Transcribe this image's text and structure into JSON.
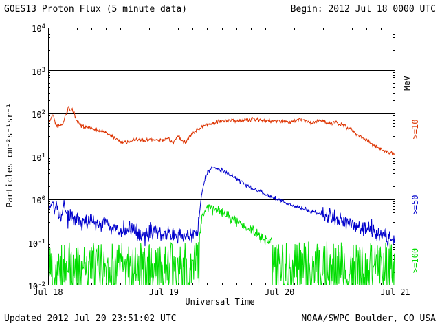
{
  "header": {
    "begin_label": "Begin: 2012 Jul 18 0000 UTC"
  },
  "footer": {
    "updated": "Updated 2012 Jul 20 23:51:02 UTC",
    "source": "NOAA/SWPC Boulder, CO USA"
  },
  "chart_data": {
    "type": "line",
    "title": "GOES13 Proton Flux (5 minute data)",
    "xlabel": "Universal Time",
    "ylabel": "Particles cm⁻²s⁻¹sr⁻¹",
    "x_unit": "hours since 2012 Jul 18 0000 UTC",
    "xlim": [
      0,
      72
    ],
    "ylim": [
      0.01,
      10000
    ],
    "yscale": "log",
    "grid": "decade horizontal lines, dashed alert line at 10, dotted vertical day boundaries",
    "x_ticks": [
      {
        "hour": 0,
        "label": "Jul 18"
      },
      {
        "hour": 24,
        "label": "Jul 19"
      },
      {
        "hour": 48,
        "label": "Jul 20"
      },
      {
        "hour": 72,
        "label": "Jul 21"
      }
    ],
    "minor_tick_hours": 3,
    "gridlines": [
      {
        "value": 1000,
        "style": "solid"
      },
      {
        "value": 100,
        "style": "solid"
      },
      {
        "value": 10,
        "style": "dashed"
      },
      {
        "value": 1,
        "style": "solid"
      },
      {
        "value": 0.1,
        "style": "solid"
      }
    ],
    "day_lines": [
      24,
      48
    ],
    "legend": {
      "axis_label": "MeV",
      "position": "right-vertical",
      "entries": [
        {
          "label": ">=10",
          "color": "#dd3300"
        },
        {
          "label": ">=50",
          "color": "#0000cc"
        },
        {
          "label": ">=100",
          "color": "#00dd00"
        }
      ]
    },
    "series": [
      {
        "name": ">=10 MeV",
        "color": "#dd3300",
        "noise_sigma": 0.022,
        "points": [
          [
            0,
            60
          ],
          [
            0.5,
            75
          ],
          [
            1,
            95
          ],
          [
            1.5,
            60
          ],
          [
            2,
            48
          ],
          [
            2.5,
            55
          ],
          [
            3,
            52
          ],
          [
            3.7,
            95
          ],
          [
            4.2,
            130
          ],
          [
            4.6,
            115
          ],
          [
            5,
            118
          ],
          [
            5.5,
            95
          ],
          [
            6,
            65
          ],
          [
            7,
            52
          ],
          [
            8,
            48
          ],
          [
            9,
            45
          ],
          [
            10,
            42
          ],
          [
            11,
            38
          ],
          [
            12,
            36
          ],
          [
            13,
            30
          ],
          [
            14,
            26
          ],
          [
            15,
            22
          ],
          [
            16,
            21
          ],
          [
            17,
            23
          ],
          [
            18,
            25
          ],
          [
            19,
            24
          ],
          [
            20,
            23
          ],
          [
            21,
            24
          ],
          [
            22,
            25
          ],
          [
            23,
            24
          ],
          [
            24,
            25
          ],
          [
            25,
            27
          ],
          [
            25.5,
            22
          ],
          [
            26,
            21
          ],
          [
            26.5,
            26
          ],
          [
            27,
            30
          ],
          [
            27.5,
            26
          ],
          [
            28,
            22
          ],
          [
            28.5,
            21
          ],
          [
            29,
            26
          ],
          [
            29.5,
            32
          ],
          [
            30,
            35
          ],
          [
            31,
            42
          ],
          [
            32,
            50
          ],
          [
            33,
            55
          ],
          [
            34,
            58
          ],
          [
            35,
            62
          ],
          [
            36,
            66
          ],
          [
            37,
            68
          ],
          [
            38,
            70
          ],
          [
            39,
            67
          ],
          [
            40,
            70
          ],
          [
            41,
            72
          ],
          [
            42,
            70
          ],
          [
            43,
            72
          ],
          [
            44,
            68
          ],
          [
            45,
            70
          ],
          [
            46,
            64
          ],
          [
            47,
            68
          ],
          [
            48,
            70
          ],
          [
            49,
            64
          ],
          [
            50,
            62
          ],
          [
            51,
            68
          ],
          [
            52,
            75
          ],
          [
            53,
            70
          ],
          [
            54,
            65
          ],
          [
            54.5,
            58
          ],
          [
            55,
            62
          ],
          [
            56,
            70
          ],
          [
            57,
            65
          ],
          [
            58,
            60
          ],
          [
            59,
            62
          ],
          [
            60,
            58
          ],
          [
            61,
            55
          ],
          [
            62,
            48
          ],
          [
            63,
            40
          ],
          [
            64,
            32
          ],
          [
            65,
            28
          ],
          [
            66,
            24
          ],
          [
            67,
            20
          ],
          [
            68,
            17
          ],
          [
            69,
            15
          ],
          [
            70,
            13
          ],
          [
            71,
            12
          ],
          [
            72,
            11
          ]
        ]
      },
      {
        "name": ">=50 MeV",
        "color": "#0000cc",
        "noise_sigma": 0.1,
        "smooth_above": 0.45,
        "points": [
          [
            0,
            0.45
          ],
          [
            0.5,
            0.7
          ],
          [
            1,
            0.95
          ],
          [
            1.3,
            0.5
          ],
          [
            1.7,
            0.9
          ],
          [
            2,
            0.45
          ],
          [
            2.5,
            0.4
          ],
          [
            3,
            0.5
          ],
          [
            3.3,
            0.95
          ],
          [
            3.6,
            0.5
          ],
          [
            4,
            0.42
          ],
          [
            5,
            0.38
          ],
          [
            6,
            0.32
          ],
          [
            7,
            0.35
          ],
          [
            8,
            0.3
          ],
          [
            9,
            0.28
          ],
          [
            10,
            0.25
          ],
          [
            11,
            0.28
          ],
          [
            12,
            0.3
          ],
          [
            13,
            0.25
          ],
          [
            14,
            0.2
          ],
          [
            15,
            0.19
          ],
          [
            16,
            0.18
          ],
          [
            17,
            0.2
          ],
          [
            18,
            0.19
          ],
          [
            19,
            0.16
          ],
          [
            20,
            0.15
          ],
          [
            21,
            0.17
          ],
          [
            22,
            0.18
          ],
          [
            23,
            0.16
          ],
          [
            24,
            0.15
          ],
          [
            25,
            0.15
          ],
          [
            26,
            0.14
          ],
          [
            27,
            0.14
          ],
          [
            28,
            0.13
          ],
          [
            29,
            0.14
          ],
          [
            30,
            0.15
          ],
          [
            30.7,
            0.16
          ],
          [
            31.2,
            0.3
          ],
          [
            31.8,
            1.2
          ],
          [
            32.5,
            3.0
          ],
          [
            33.2,
            4.5
          ],
          [
            34,
            5.3
          ],
          [
            34.5,
            5.5
          ],
          [
            35,
            5.2
          ],
          [
            36,
            4.8
          ],
          [
            37,
            4.2
          ],
          [
            38,
            3.6
          ],
          [
            39,
            3.0
          ],
          [
            40,
            2.6
          ],
          [
            41,
            2.2
          ],
          [
            42,
            1.9
          ],
          [
            43,
            1.7
          ],
          [
            44,
            1.5
          ],
          [
            45,
            1.3
          ],
          [
            46,
            1.15
          ],
          [
            47,
            1.05
          ],
          [
            48,
            0.95
          ],
          [
            49,
            0.85
          ],
          [
            50,
            0.78
          ],
          [
            51,
            0.72
          ],
          [
            52,
            0.66
          ],
          [
            53,
            0.6
          ],
          [
            54,
            0.55
          ],
          [
            55,
            0.5
          ],
          [
            56,
            0.47
          ],
          [
            57,
            0.44
          ],
          [
            58,
            0.4
          ],
          [
            59,
            0.37
          ],
          [
            60,
            0.34
          ],
          [
            61,
            0.3
          ],
          [
            62,
            0.28
          ],
          [
            63,
            0.26
          ],
          [
            64,
            0.24
          ],
          [
            65,
            0.22
          ],
          [
            66,
            0.2
          ],
          [
            67,
            0.18
          ],
          [
            68,
            0.17
          ],
          [
            69,
            0.15
          ],
          [
            70,
            0.14
          ],
          [
            71,
            0.13
          ],
          [
            72,
            0.12
          ]
        ]
      },
      {
        "name": ">=100 MeV",
        "color": "#00dd00",
        "noise_sigma": 0.06,
        "spiky_below": 0.105,
        "floor": 0.01,
        "points": [
          [
            0,
            0.05
          ],
          [
            30.8,
            0.05
          ],
          [
            31.3,
            0.1
          ],
          [
            31.8,
            0.3
          ],
          [
            32.3,
            0.55
          ],
          [
            33,
            0.62
          ],
          [
            33.5,
            0.65
          ],
          [
            34,
            0.63
          ],
          [
            35,
            0.58
          ],
          [
            36,
            0.5
          ],
          [
            37,
            0.42
          ],
          [
            38,
            0.36
          ],
          [
            39,
            0.3
          ],
          [
            40,
            0.26
          ],
          [
            41,
            0.22
          ],
          [
            42,
            0.19
          ],
          [
            43,
            0.16
          ],
          [
            44,
            0.14
          ],
          [
            45,
            0.12
          ],
          [
            46,
            0.11
          ],
          [
            47,
            0.1
          ],
          [
            48,
            0.09
          ],
          [
            50,
            0.08
          ],
          [
            52,
            0.07
          ],
          [
            54,
            0.065
          ],
          [
            56,
            0.06
          ],
          [
            58,
            0.06
          ],
          [
            60,
            0.055
          ],
          [
            62,
            0.055
          ],
          [
            64,
            0.05
          ],
          [
            66,
            0.05
          ],
          [
            68,
            0.05
          ],
          [
            70,
            0.05
          ],
          [
            72,
            0.05
          ]
        ]
      }
    ]
  }
}
